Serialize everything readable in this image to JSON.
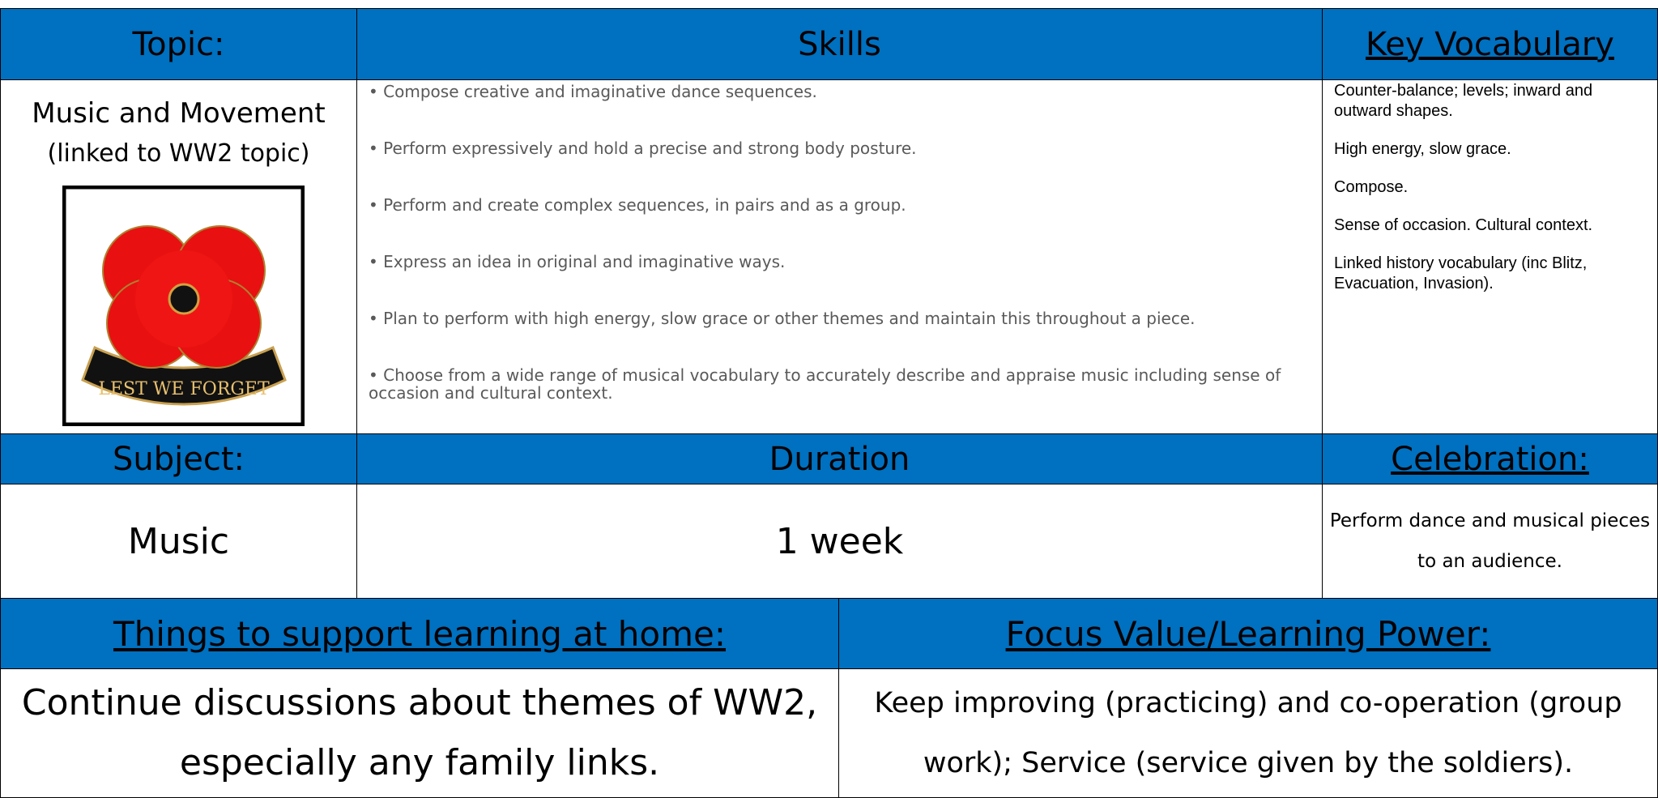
{
  "header": {
    "topic": "Topic:",
    "skills": "Skills",
    "vocabulary": "Key Vocabulary"
  },
  "topic": {
    "line1": "Music and Movement",
    "line2": "(linked to WW2 topic)",
    "badge_text": "LEST WE FORGET"
  },
  "skills": [
    "• Compose creative and imaginative dance sequences.",
    "• Perform expressively and hold a precise and strong body posture.",
    "• Perform and create complex sequences, in pairs and as a group.",
    "• Express an idea in original and imaginative ways.",
    "• Plan to perform with high energy, slow grace or other themes and maintain this throughout a piece.",
    "• Choose from a wide range of musical vocabulary to accurately describe and appraise music including sense of occasion and cultural context."
  ],
  "vocabulary": [
    "Counter-balance; levels; inward and outward shapes.",
    "High energy, slow grace.",
    "Compose.",
    "Sense of occasion. Cultural context.",
    "Linked history vocabulary (inc Blitz, Evacuation, Invasion)."
  ],
  "header2": {
    "subject": "Subject:",
    "duration": "Duration",
    "celebration": "Celebration:"
  },
  "row2": {
    "subject": "Music",
    "duration": "1 week",
    "celebration": "Perform dance and musical pieces to an audience."
  },
  "header3": {
    "home": "Things to support learning at home:",
    "focus": "Focus Value/Learning Power:"
  },
  "row3": {
    "home": "Continue discussions about themes of WW2, especially any family links.",
    "focus": "Keep improving (practicing) and co-operation (group work); Service (service given by the soldiers)."
  }
}
